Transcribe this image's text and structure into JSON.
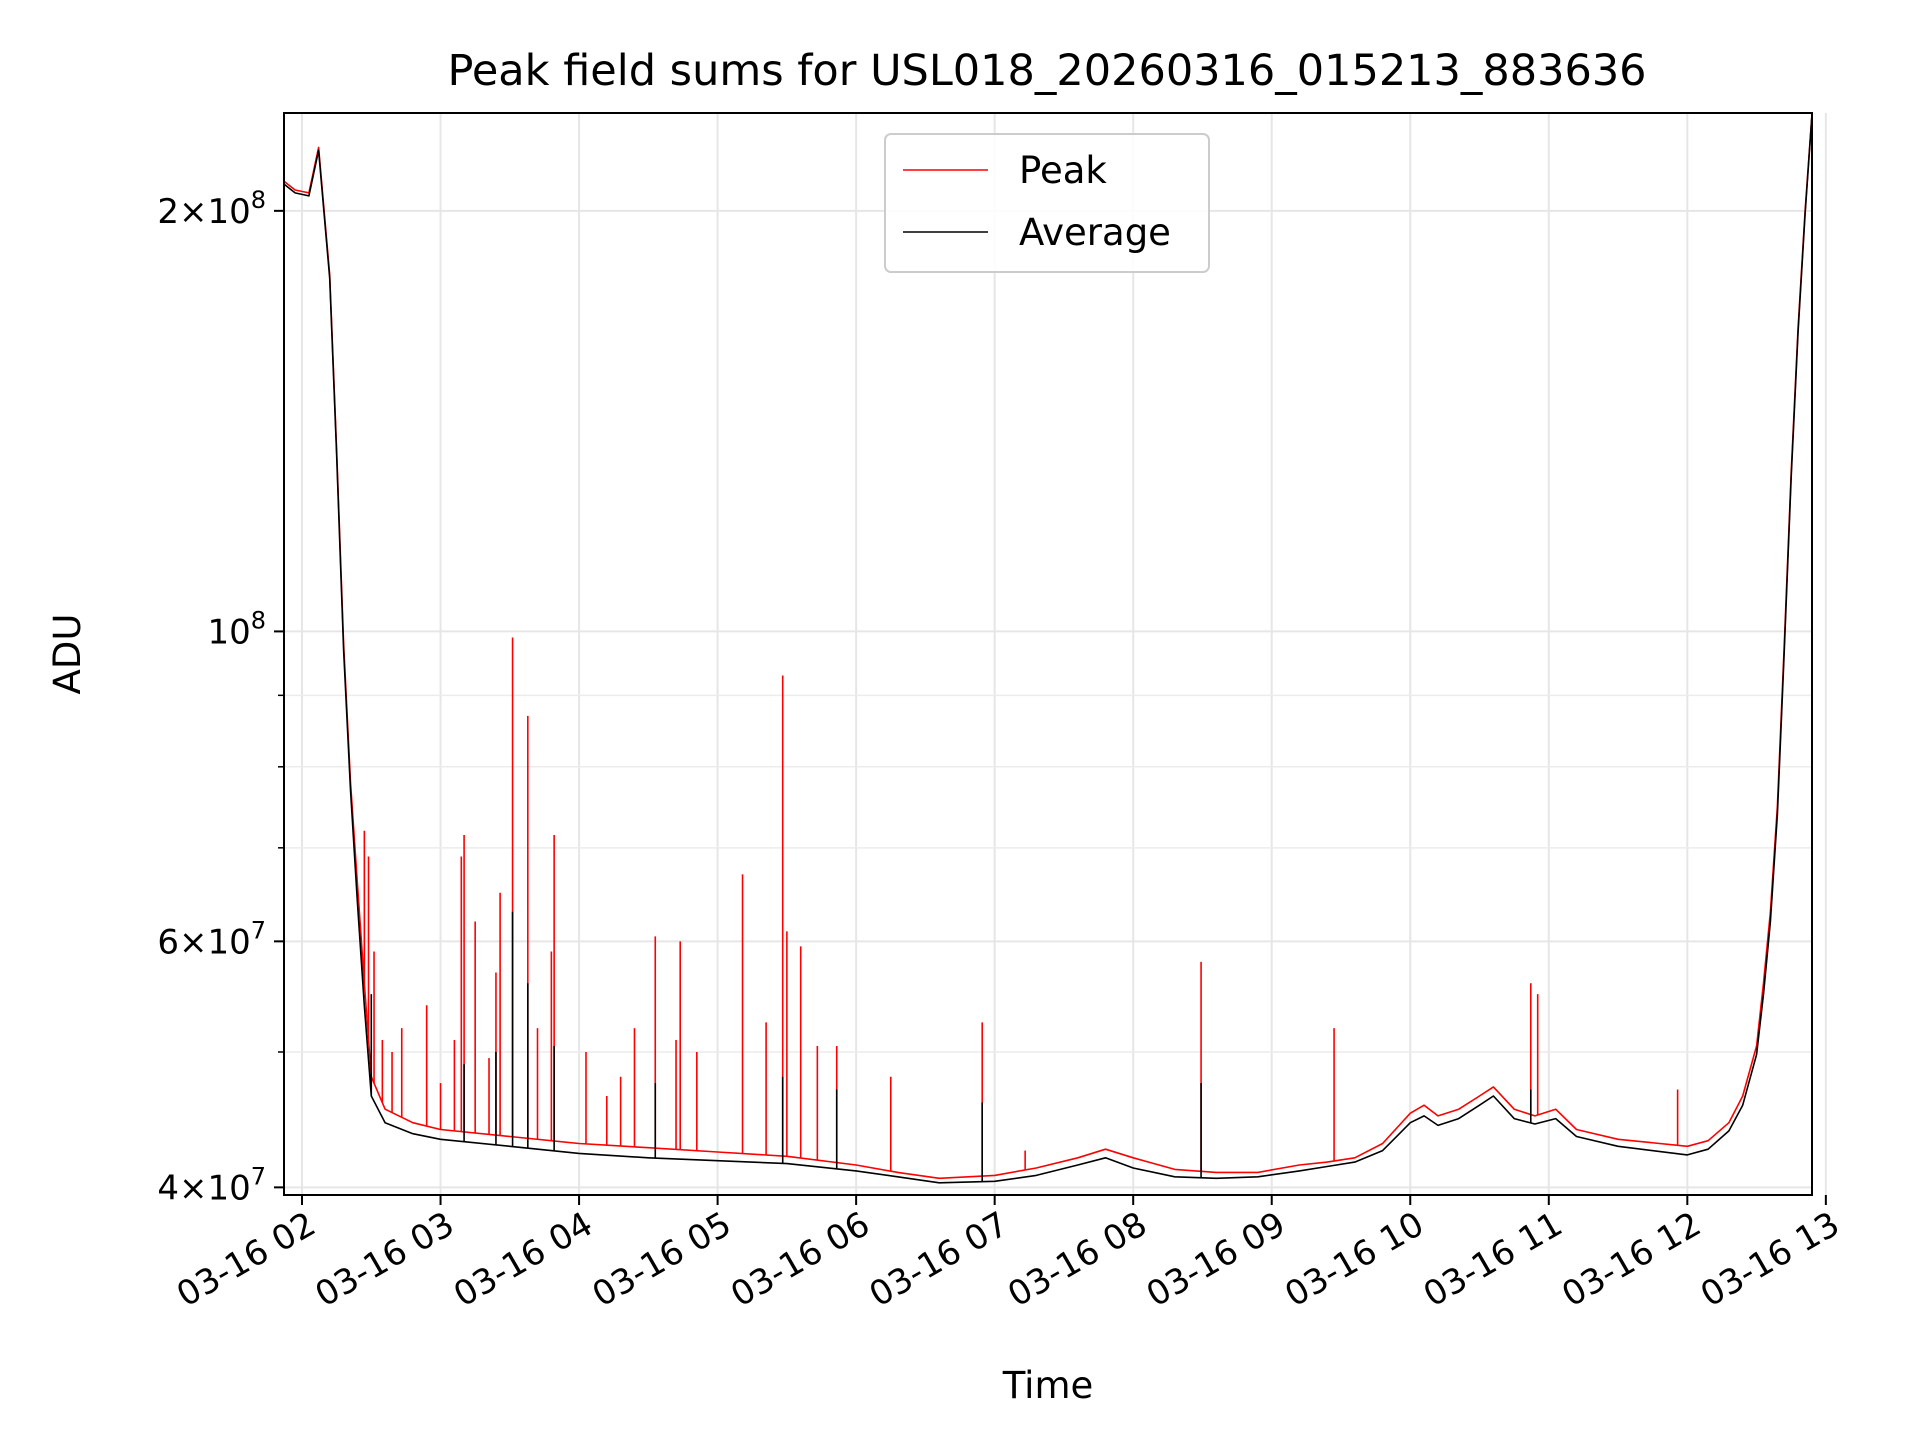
{
  "chart_data": {
    "type": "line",
    "title": "Peak field sums for USL018_20260316_015213_883636",
    "xlabel": "Time",
    "ylabel": "ADU",
    "yscale": "log",
    "grid": true,
    "legend_position": "upper-center",
    "x_unit": "hours since 03-16 00:00",
    "xlim": [
      1.87,
      12.9
    ],
    "ylim": [
      39500000,
      235000000
    ],
    "x_ticks": [
      {
        "value": 2,
        "label": "03-16 02"
      },
      {
        "value": 3,
        "label": "03-16 03"
      },
      {
        "value": 4,
        "label": "03-16 04"
      },
      {
        "value": 5,
        "label": "03-16 05"
      },
      {
        "value": 6,
        "label": "03-16 06"
      },
      {
        "value": 7,
        "label": "03-16 07"
      },
      {
        "value": 8,
        "label": "03-16 08"
      },
      {
        "value": 9,
        "label": "03-16 09"
      },
      {
        "value": 10,
        "label": "03-16 10"
      },
      {
        "value": 11,
        "label": "03-16 11"
      },
      {
        "value": 12,
        "label": "03-16 12"
      },
      {
        "value": 13,
        "label": "03-16 13"
      }
    ],
    "y_ticks": [
      {
        "value": 40000000,
        "mant": "4",
        "exp": "7"
      },
      {
        "value": 60000000,
        "mant": "6",
        "exp": "7"
      },
      {
        "value": 100000000,
        "mant": "",
        "exp": "8"
      },
      {
        "value": 200000000,
        "mant": "2",
        "exp": "8"
      }
    ],
    "y_minor_ticks": [
      50000000,
      70000000,
      80000000,
      90000000
    ],
    "series": [
      {
        "name": "Peak",
        "color": "#ff0000",
        "x": [
          1.87,
          1.95,
          2.05,
          2.12,
          2.2,
          2.25,
          2.3,
          2.35,
          2.4,
          2.45,
          2.5,
          2.6,
          2.8,
          3.0,
          3.5,
          4.0,
          4.5,
          5.0,
          5.5,
          6.0,
          6.3,
          6.6,
          7.0,
          7.3,
          7.6,
          7.8,
          8.0,
          8.3,
          8.6,
          8.9,
          9.2,
          9.4,
          9.6,
          9.8,
          10.0,
          10.1,
          10.2,
          10.35,
          10.5,
          10.6,
          10.75,
          10.9,
          11.05,
          11.2,
          11.5,
          12.0,
          12.15,
          12.3,
          12.4,
          12.5,
          12.55,
          12.6,
          12.65,
          12.7,
          12.75,
          12.8,
          12.85,
          12.9
        ],
        "values": [
          210000000,
          207000000,
          206000000,
          222000000,
          180000000,
          135000000,
          98000000,
          78000000,
          66000000,
          56000000,
          48000000,
          45500000,
          44500000,
          44000000,
          43500000,
          43000000,
          42700000,
          42400000,
          42100000,
          41500000,
          41000000,
          40600000,
          40800000,
          41300000,
          42000000,
          42600000,
          42000000,
          41200000,
          41000000,
          41000000,
          41500000,
          41700000,
          42000000,
          43000000,
          45200000,
          45800000,
          45000000,
          45500000,
          46500000,
          47200000,
          45500000,
          45000000,
          45500000,
          44000000,
          43300000,
          42800000,
          43200000,
          44500000,
          46500000,
          50500000,
          56000000,
          63000000,
          75000000,
          98000000,
          130000000,
          165000000,
          200000000,
          235000000
        ],
        "spikes": [
          [
            2.45,
            72000000
          ],
          [
            2.48,
            69000000
          ],
          [
            2.52,
            59000000
          ],
          [
            2.58,
            51000000
          ],
          [
            2.65,
            50000000
          ],
          [
            2.72,
            52000000
          ],
          [
            2.9,
            54000000
          ],
          [
            3.0,
            47500000
          ],
          [
            3.1,
            51000000
          ],
          [
            3.15,
            69000000
          ],
          [
            3.17,
            71500000
          ],
          [
            3.25,
            62000000
          ],
          [
            3.35,
            49500000
          ],
          [
            3.4,
            57000000
          ],
          [
            3.43,
            65000000
          ],
          [
            3.52,
            99000000
          ],
          [
            3.63,
            87000000
          ],
          [
            3.7,
            52000000
          ],
          [
            3.8,
            59000000
          ],
          [
            3.82,
            71500000
          ],
          [
            4.05,
            50000000
          ],
          [
            4.2,
            46500000
          ],
          [
            4.3,
            48000000
          ],
          [
            4.4,
            52000000
          ],
          [
            4.55,
            60500000
          ],
          [
            4.7,
            51000000
          ],
          [
            4.73,
            60000000
          ],
          [
            4.85,
            50000000
          ],
          [
            5.18,
            67000000
          ],
          [
            5.35,
            52500000
          ],
          [
            5.47,
            93000000
          ],
          [
            5.5,
            61000000
          ],
          [
            5.6,
            59500000
          ],
          [
            5.72,
            50500000
          ],
          [
            5.86,
            50500000
          ],
          [
            6.25,
            48000000
          ],
          [
            6.91,
            52500000
          ],
          [
            7.22,
            42500000
          ],
          [
            8.49,
            58000000
          ],
          [
            9.45,
            52000000
          ],
          [
            10.87,
            56000000
          ],
          [
            10.92,
            55000000
          ],
          [
            11.93,
            47000000
          ]
        ]
      },
      {
        "name": "Average",
        "color": "#000000",
        "x": [
          1.87,
          1.95,
          2.05,
          2.12,
          2.2,
          2.25,
          2.3,
          2.35,
          2.4,
          2.45,
          2.5,
          2.6,
          2.8,
          3.0,
          3.5,
          4.0,
          4.5,
          5.0,
          5.5,
          6.0,
          6.3,
          6.6,
          7.0,
          7.3,
          7.6,
          7.8,
          8.0,
          8.3,
          8.6,
          8.9,
          9.2,
          9.4,
          9.6,
          9.8,
          10.0,
          10.1,
          10.2,
          10.35,
          10.5,
          10.6,
          10.75,
          10.9,
          11.05,
          11.2,
          11.5,
          12.0,
          12.15,
          12.3,
          12.4,
          12.5,
          12.55,
          12.6,
          12.65,
          12.7,
          12.75,
          12.8,
          12.85,
          12.9
        ],
        "values": [
          209000000,
          206000000,
          205000000,
          221000000,
          179000000,
          134000000,
          97000000,
          77000000,
          64000000,
          54000000,
          46500000,
          44500000,
          43700000,
          43300000,
          42800000,
          42300000,
          42000000,
          41800000,
          41600000,
          41100000,
          40700000,
          40300000,
          40400000,
          40800000,
          41500000,
          42000000,
          41300000,
          40700000,
          40600000,
          40700000,
          41100000,
          41400000,
          41700000,
          42500000,
          44500000,
          45000000,
          44300000,
          44800000,
          45800000,
          46500000,
          44800000,
          44400000,
          44800000,
          43500000,
          42800000,
          42200000,
          42600000,
          43900000,
          45800000,
          49800000,
          55000000,
          62000000,
          74000000,
          97000000,
          129000000,
          164000000,
          199000000,
          235000000
        ],
        "spikes": [
          [
            2.5,
            55000000
          ],
          [
            3.17,
            49000000
          ],
          [
            3.4,
            50000000
          ],
          [
            3.52,
            63000000
          ],
          [
            3.63,
            56000000
          ],
          [
            3.82,
            50500000
          ],
          [
            4.55,
            47500000
          ],
          [
            5.47,
            48000000
          ],
          [
            5.86,
            47000000
          ],
          [
            6.91,
            46000000
          ],
          [
            8.49,
            47500000
          ],
          [
            10.87,
            47000000
          ]
        ]
      }
    ],
    "legend": [
      {
        "label": "Peak",
        "color": "#ff0000"
      },
      {
        "label": "Average",
        "color": "#000000"
      }
    ]
  }
}
